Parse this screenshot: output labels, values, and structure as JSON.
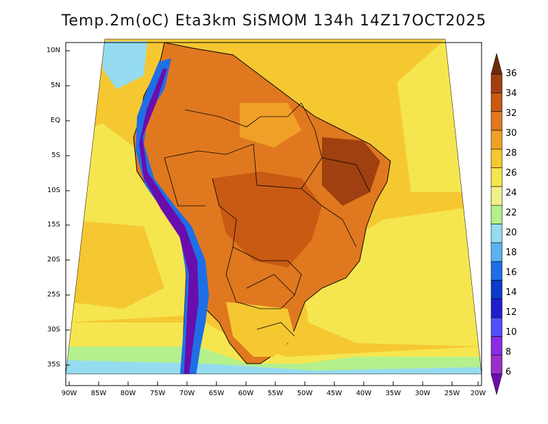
{
  "title": "Temp.2m(oC) Eta3km SiSMOM 134h 14Z17OCT2025",
  "lat_labels": [
    "10N",
    "5N",
    "EQ",
    "5S",
    "10S",
    "15S",
    "20S",
    "25S",
    "30S",
    "35S"
  ],
  "lon_labels": [
    "90W",
    "85W",
    "80W",
    "75W",
    "70W",
    "65W",
    "60W",
    "55W",
    "50W",
    "45W",
    "40W",
    "35W",
    "30W",
    "25W",
    "20W"
  ],
  "colorbar": {
    "levels": [
      "6",
      "8",
      "10",
      "12",
      "14",
      "16",
      "18",
      "20",
      "22",
      "24",
      "26",
      "28",
      "30",
      "32",
      "34",
      "36"
    ],
    "colors": [
      "#6a0dad",
      "#9b30c8",
      "#8a2be2",
      "#5050ff",
      "#1f1fcf",
      "#0a3cc8",
      "#1e6fe6",
      "#5ab4f0",
      "#96dcf0",
      "#b4f08c",
      "#f0f08c",
      "#f5e650",
      "#f5c832",
      "#f0a028",
      "#e07820",
      "#c85a14",
      "#a04010",
      "#6e2a0a"
    ]
  },
  "map_colors": {
    "ocean_cool": "#96dcf0",
    "ocean_mild": "#f5e650",
    "ocean_warm": "#f5c832",
    "land_warm": "#e07820",
    "land_hot": "#c85a14",
    "andes_cold": "#6a0dad"
  }
}
